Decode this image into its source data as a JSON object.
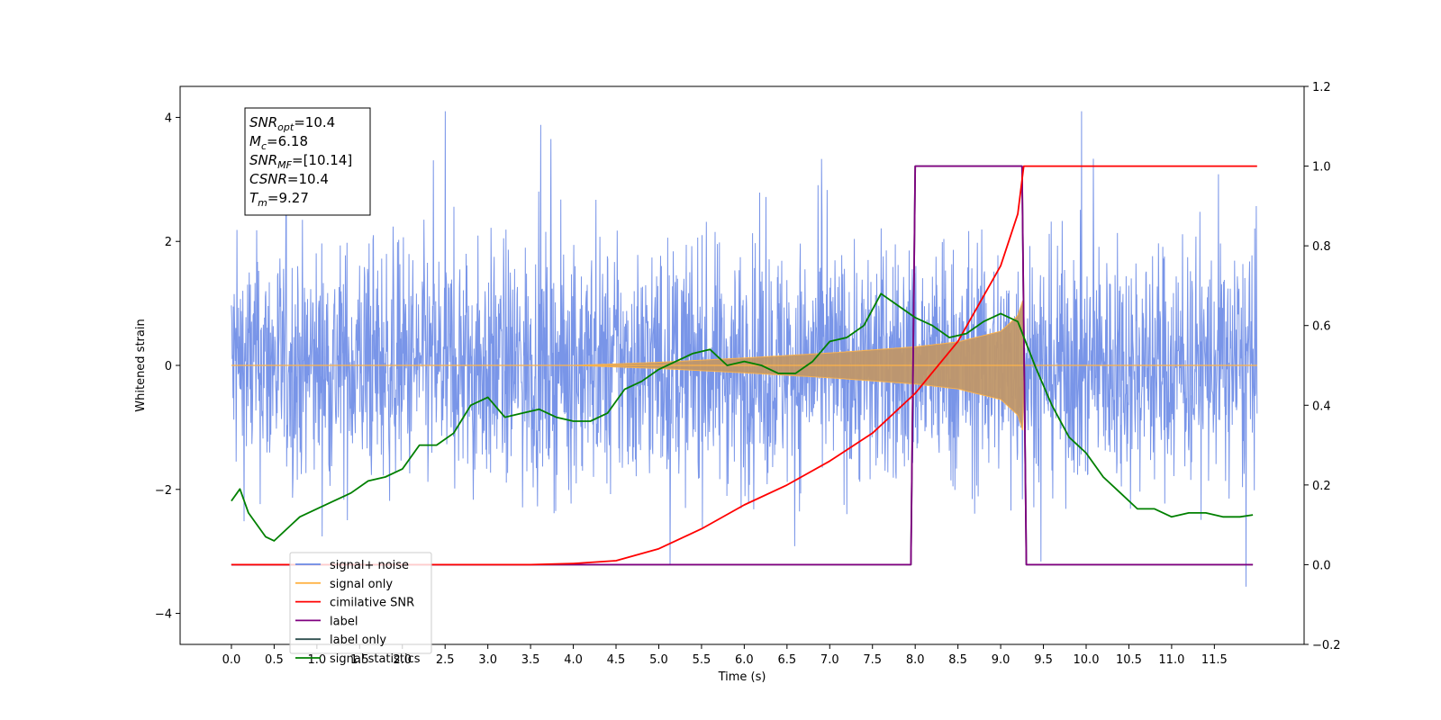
{
  "chart_data": {
    "type": "line",
    "xlabel": "Time (s)",
    "ylabel": "Whitened strain",
    "xlim": [
      -0.6,
      12.55
    ],
    "ylim": [
      -4.5,
      4.5
    ],
    "y2lim": [
      -0.2,
      1.2
    ],
    "x_ticks": [
      0.0,
      0.5,
      1.0,
      1.5,
      2.0,
      2.5,
      3.0,
      3.5,
      4.0,
      4.5,
      5.0,
      5.5,
      6.0,
      6.5,
      7.0,
      7.5,
      8.0,
      8.5,
      9.0,
      9.5,
      10.0,
      10.5,
      11.0,
      11.5
    ],
    "x_tick_labels": [
      "0.0",
      "0.5",
      "1.0",
      "1.5",
      "2.0",
      "2.5",
      "3.0",
      "3.5",
      "4.0",
      "4.5",
      "5.0",
      "5.5",
      "6.0",
      "6.5",
      "7.0",
      "7.5",
      "8.0",
      "8.5",
      "9.0",
      "9.5",
      "10.0",
      "10.5",
      "11.0",
      "11.5"
    ],
    "y_ticks": [
      -4,
      -2,
      0,
      2,
      4
    ],
    "y_tick_labels": [
      "−4",
      "−2",
      "0",
      "2",
      "4"
    ],
    "y2_ticks": [
      -0.2,
      0.0,
      0.2,
      0.4,
      0.6,
      0.8,
      1.0,
      1.2
    ],
    "y2_tick_labels": [
      "−0.2",
      "0.0",
      "0.2",
      "0.4",
      "0.6",
      "0.8",
      "1.0",
      "1.2"
    ],
    "grid": false,
    "legend_position": "bottom-left",
    "info_box": {
      "position": "top-left",
      "lines": [
        {
          "sym": "SNR",
          "sub": "opt",
          "rest": "=10.4"
        },
        {
          "sym": "M",
          "sub": "c",
          "rest": "=6.18"
        },
        {
          "sym": "SNR",
          "sub": "MF",
          "rest": "=[10.14]"
        },
        {
          "sym": "CSNR",
          "sub": "",
          "rest": "=10.4"
        },
        {
          "sym": "T",
          "sub": "m",
          "rest": "=9.27"
        }
      ]
    },
    "series": [
      {
        "name": "signal+ noise",
        "axis": "left",
        "color": "#6a8ae6",
        "style": "noise band",
        "x_range": [
          0.0,
          12.0
        ],
        "approx_envelope": [
          -3.7,
          4.1
        ]
      },
      {
        "name": "signal only",
        "axis": "left",
        "color": "#ffb347",
        "style": "chirp",
        "x": [
          0.0,
          4.0,
          5.0,
          6.0,
          7.0,
          8.0,
          8.5,
          9.0,
          9.2,
          9.27,
          12.0
        ],
        "amplitude": [
          0.0,
          0.0,
          0.05,
          0.12,
          0.2,
          0.3,
          0.38,
          0.55,
          0.8,
          1.1,
          0.0
        ]
      },
      {
        "name": "cimilative SNR",
        "axis": "right",
        "color": "#ff0000",
        "x": [
          0.0,
          3.5,
          4.0,
          4.5,
          5.0,
          5.5,
          6.0,
          6.5,
          7.0,
          7.5,
          8.0,
          8.5,
          9.0,
          9.2,
          9.27,
          12.0
        ],
        "y": [
          0.0,
          0.0,
          0.003,
          0.01,
          0.04,
          0.09,
          0.15,
          0.2,
          0.26,
          0.33,
          0.43,
          0.56,
          0.75,
          0.88,
          1.0,
          1.0
        ]
      },
      {
        "name": "label",
        "axis": "right",
        "color": "#800080",
        "x": [
          0.0,
          7.95,
          8.0,
          9.25,
          9.3,
          11.95
        ],
        "y": [
          0.0,
          0.0,
          1.0,
          1.0,
          0.0,
          0.0
        ]
      },
      {
        "name": "label only",
        "axis": "right",
        "color": "#2f4f4f",
        "x": [
          0.0,
          7.95,
          8.0,
          9.25,
          9.3,
          11.95
        ],
        "y": [
          0.0,
          0.0,
          1.0,
          1.0,
          0.0,
          0.0
        ]
      },
      {
        "name": "signal statistics",
        "axis": "right",
        "color": "#008000",
        "x": [
          0.0,
          0.1,
          0.2,
          0.3,
          0.4,
          0.5,
          0.6,
          0.7,
          0.8,
          1.0,
          1.2,
          1.4,
          1.6,
          1.8,
          2.0,
          2.2,
          2.4,
          2.6,
          2.8,
          3.0,
          3.2,
          3.4,
          3.6,
          3.8,
          4.0,
          4.2,
          4.4,
          4.6,
          4.8,
          5.0,
          5.2,
          5.4,
          5.6,
          5.8,
          6.0,
          6.2,
          6.4,
          6.6,
          6.8,
          7.0,
          7.2,
          7.4,
          7.6,
          7.8,
          8.0,
          8.2,
          8.4,
          8.6,
          8.8,
          9.0,
          9.2,
          9.4,
          9.6,
          9.8,
          10.0,
          10.2,
          10.4,
          10.6,
          10.8,
          11.0,
          11.2,
          11.4,
          11.6,
          11.8,
          11.95
        ],
        "y": [
          0.16,
          0.19,
          0.13,
          0.1,
          0.07,
          0.06,
          0.08,
          0.1,
          0.12,
          0.14,
          0.16,
          0.18,
          0.21,
          0.22,
          0.24,
          0.3,
          0.3,
          0.33,
          0.4,
          0.42,
          0.37,
          0.38,
          0.39,
          0.37,
          0.36,
          0.36,
          0.38,
          0.44,
          0.46,
          0.49,
          0.51,
          0.53,
          0.54,
          0.5,
          0.51,
          0.5,
          0.48,
          0.48,
          0.51,
          0.56,
          0.57,
          0.6,
          0.68,
          0.65,
          0.62,
          0.6,
          0.57,
          0.58,
          0.61,
          0.63,
          0.61,
          0.5,
          0.4,
          0.32,
          0.28,
          0.22,
          0.18,
          0.14,
          0.14,
          0.12,
          0.13,
          0.13,
          0.12,
          0.12,
          0.125
        ]
      }
    ]
  }
}
